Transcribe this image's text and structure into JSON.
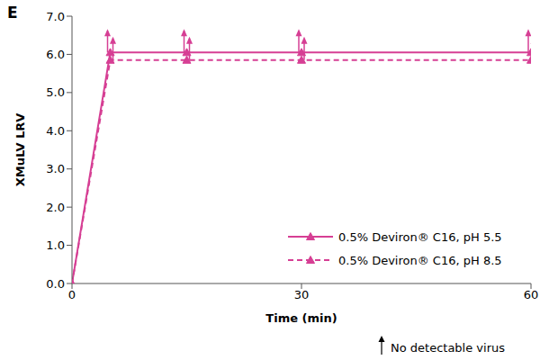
{
  "chart_data": {
    "type": "line",
    "title": "E",
    "x_label": "Time (min)",
    "y_label": "XMuLV LRV",
    "x": [
      0,
      5,
      15,
      30,
      60
    ],
    "series": [
      {
        "name": "0.5% Deviron® C16, pH 5.5",
        "color": "#d63f94",
        "line_style": "solid",
        "marker": "triangle",
        "values": [
          0,
          6.05,
          6.05,
          6.05,
          6.05
        ],
        "lower_bound": [
          false,
          true,
          true,
          true,
          true
        ]
      },
      {
        "name": "0.5% Deviron® C16, pH 8.5",
        "color": "#d63f94",
        "line_style": "dashed",
        "marker": "triangle",
        "values": [
          0,
          5.85,
          5.85,
          5.85,
          5.85
        ],
        "lower_bound": [
          false,
          true,
          true,
          true,
          true
        ]
      }
    ],
    "xlim": [
      0,
      60
    ],
    "xticks": [
      0,
      30,
      60
    ],
    "ylim": [
      0,
      7
    ],
    "yticks": [
      {
        "value": 0,
        "label": "0.0"
      },
      {
        "value": 1,
        "label": "1.0"
      },
      {
        "value": 2,
        "label": "2.0"
      },
      {
        "value": 3,
        "label": "3.0"
      },
      {
        "value": 4,
        "label": "4.0"
      },
      {
        "value": 5,
        "label": "5.0"
      },
      {
        "value": 6,
        "label": "6.0"
      },
      {
        "value": 7,
        "label": "7.0"
      }
    ],
    "grid": false,
    "legend": "lower right",
    "annotation": "No detectable virus"
  }
}
